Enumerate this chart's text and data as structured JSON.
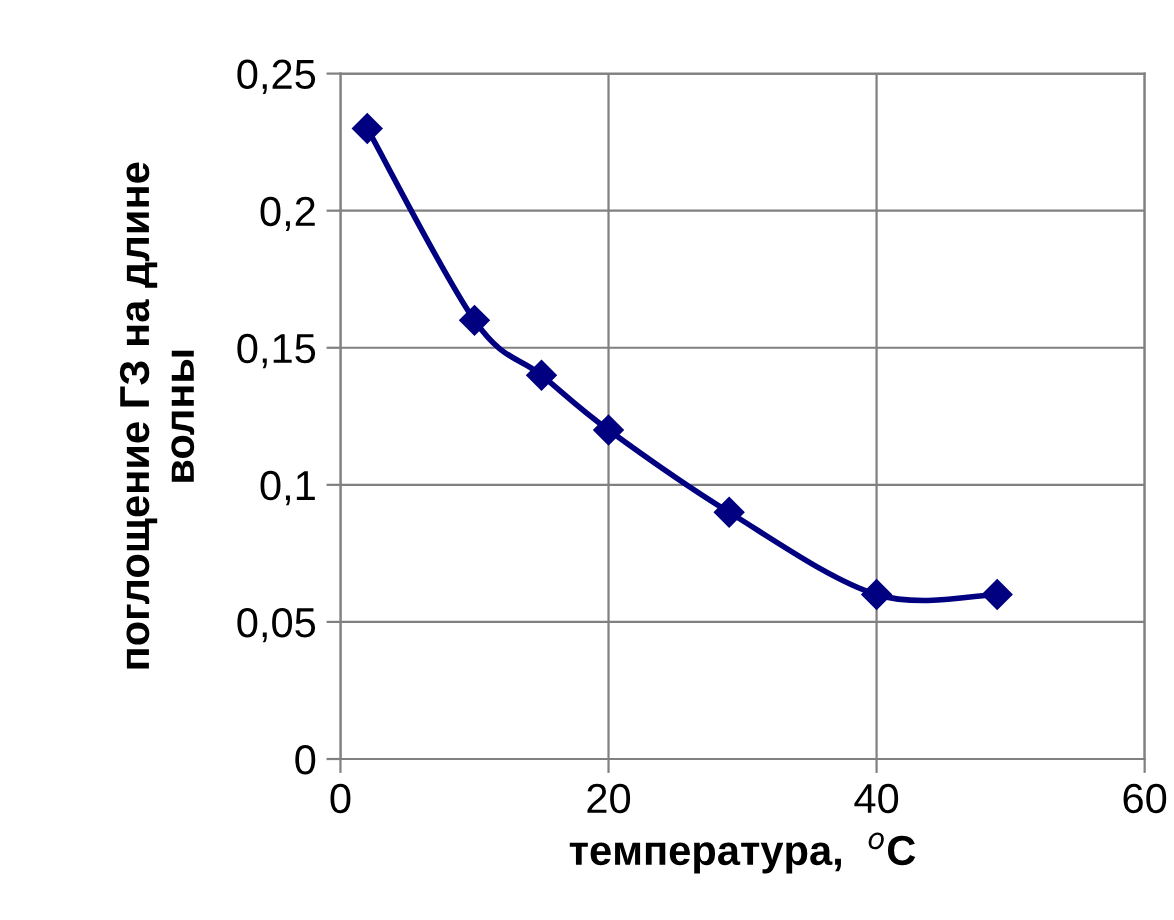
{
  "chart_data": {
    "type": "line",
    "xlabel": "температура,  $^{o}$C",
    "ylabel": "поглощение ГЗ на длине\nволны",
    "x": [
      2,
      10,
      15,
      20,
      29,
      40,
      49
    ],
    "series": [
      {
        "color": "#000080",
        "values": [
          0.23,
          0.16,
          0.14,
          0.12,
          0.09,
          0.06,
          0.06
        ]
      }
    ],
    "xlim": [
      0,
      60
    ],
    "xticks": [
      0,
      20,
      40,
      60
    ],
    "ylim": [
      0,
      0.25
    ],
    "yticks": [
      {
        "value": 0,
        "label": "0"
      },
      {
        "value": 0.05,
        "label": "0,05"
      },
      {
        "value": 0.1,
        "label": "0,1"
      },
      {
        "value": 0.15,
        "label": "0,15"
      },
      {
        "value": 0.2,
        "label": "0,2"
      },
      {
        "value": 0.25,
        "label": "0,25"
      }
    ],
    "grid": true,
    "marker": "diamond",
    "line_style": "solid"
  }
}
